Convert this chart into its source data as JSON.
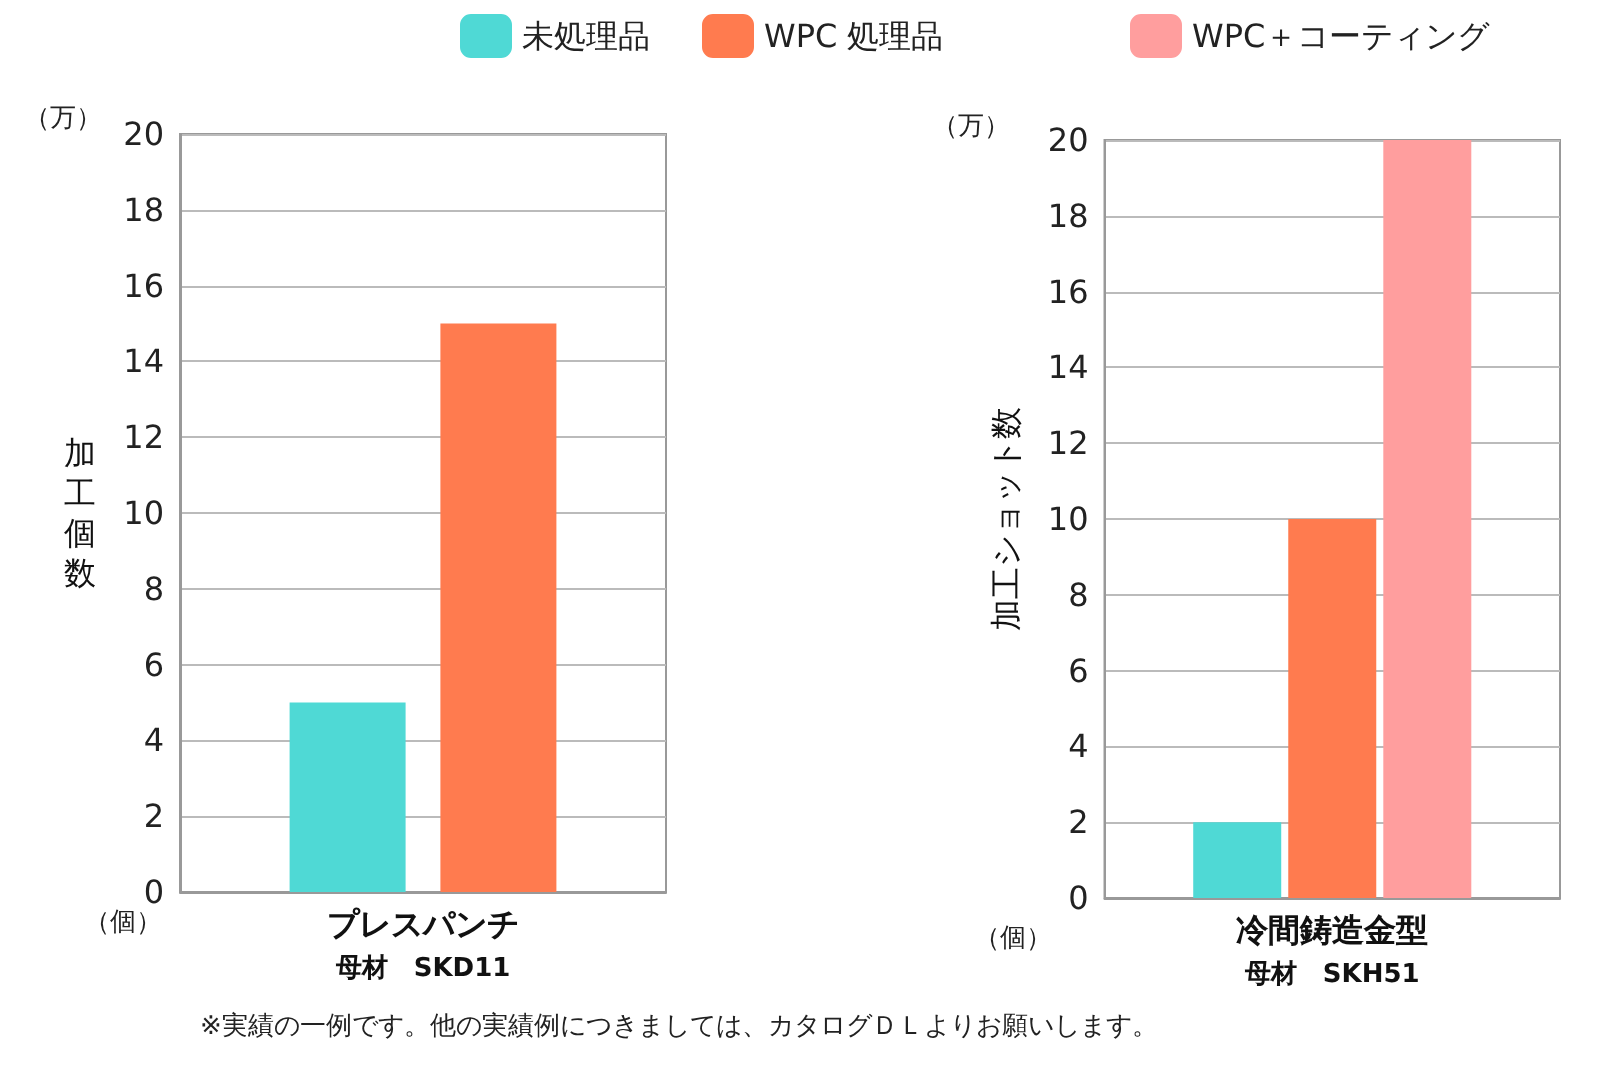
{
  "chart_data": [
    {
      "type": "bar",
      "categories": [
        "プレスパンチ"
      ],
      "xlabel": "母材　SKD11",
      "ylabel": "加工個数",
      "series": [
        {
          "name": "未処理品",
          "color": "#4fd9d5",
          "values": [
            5
          ]
        },
        {
          "name": "WPC 処理品",
          "color": "#ff7b4f",
          "values": [
            15
          ]
        }
      ],
      "ylim": [
        0,
        20
      ],
      "yticks": [
        0,
        2,
        4,
        6,
        8,
        10,
        12,
        14,
        16,
        18,
        20
      ],
      "grid": "y",
      "legend": "top",
      "annotations": [
        "（万）",
        "（個）",
        "※実績の一例です。他の実績例につきましては、カタログＤＬよりお願いします。"
      ]
    },
    {
      "type": "bar",
      "categories": [
        "冷間鋳造金型"
      ],
      "xlabel": "母材　SKH51",
      "ylabel": "加工ショット数",
      "series": [
        {
          "color": "#4fd9d5",
          "values": [
            2
          ]
        },
        {
          "color": "#ff7b4f",
          "values": [
            10
          ]
        },
        {
          "name": "WPC＋コーティング",
          "color": "#ff9e9e",
          "values": [
            20
          ]
        }
      ],
      "ylim": [
        0,
        20
      ],
      "yticks": [
        0,
        2,
        4,
        6,
        8,
        10,
        12,
        14,
        16,
        18,
        20
      ],
      "grid": "y",
      "legend": "top",
      "annotations": [
        "（万）",
        "（個）"
      ]
    }
  ]
}
